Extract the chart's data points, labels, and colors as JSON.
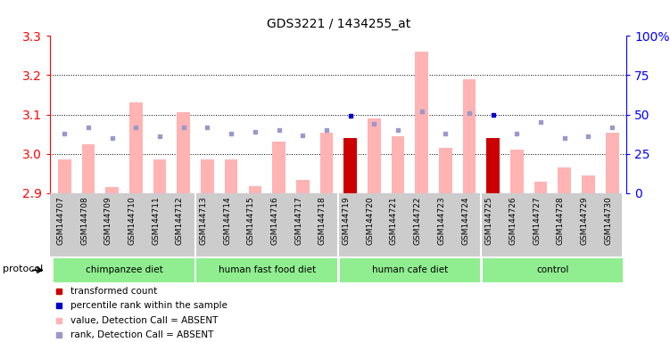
{
  "title": "GDS3221 / 1434255_at",
  "samples": [
    "GSM144707",
    "GSM144708",
    "GSM144709",
    "GSM144710",
    "GSM144711",
    "GSM144712",
    "GSM144713",
    "GSM144714",
    "GSM144715",
    "GSM144716",
    "GSM144717",
    "GSM144718",
    "GSM144719",
    "GSM144720",
    "GSM144721",
    "GSM144722",
    "GSM144723",
    "GSM144724",
    "GSM144725",
    "GSM144726",
    "GSM144727",
    "GSM144728",
    "GSM144729",
    "GSM144730"
  ],
  "bar_values": [
    2.985,
    3.025,
    2.915,
    3.13,
    2.985,
    3.105,
    2.985,
    2.987,
    2.918,
    3.032,
    2.935,
    3.055,
    3.04,
    3.09,
    3.045,
    3.26,
    3.015,
    3.19,
    3.04,
    3.01,
    2.93,
    2.965,
    2.945,
    3.055
  ],
  "bar_baseline": 2.9,
  "red_bar_indices": [
    12,
    18
  ],
  "red_bar_values": [
    3.04,
    3.04
  ],
  "rank_values": [
    38,
    42,
    35,
    42,
    36,
    42,
    42,
    38,
    39,
    40,
    37,
    40,
    49,
    44,
    40,
    52,
    38,
    51,
    50,
    38,
    45,
    35,
    36,
    42
  ],
  "rank_dark_indices": [
    12,
    18
  ],
  "group_boundaries": [
    0,
    6,
    12,
    18,
    24
  ],
  "group_labels": [
    "chimpanzee diet",
    "human fast food diet",
    "human cafe diet",
    "control"
  ],
  "group_color": "#90ee90",
  "ylim_left": [
    2.9,
    3.3
  ],
  "ylim_right": [
    0,
    100
  ],
  "yticks_left": [
    2.9,
    3.0,
    3.1,
    3.2,
    3.3
  ],
  "yticks_right": [
    0,
    25,
    50,
    75,
    100
  ],
  "grid_lines": [
    3.0,
    3.1,
    3.2
  ],
  "pink_bar_color": "#ffb3b3",
  "red_bar_color": "#cc0000",
  "blue_dark_color": "#0000cc",
  "blue_light_color": "#9999cc",
  "xtick_bg": "#cccccc",
  "plot_bg": "#ffffff",
  "protocol_label": "protocol",
  "legend_items": [
    {
      "color": "#cc0000",
      "label": "transformed count"
    },
    {
      "color": "#0000cc",
      "label": "percentile rank within the sample"
    },
    {
      "color": "#ffb3b3",
      "label": "value, Detection Call = ABSENT"
    },
    {
      "color": "#9999cc",
      "label": "rank, Detection Call = ABSENT"
    }
  ]
}
